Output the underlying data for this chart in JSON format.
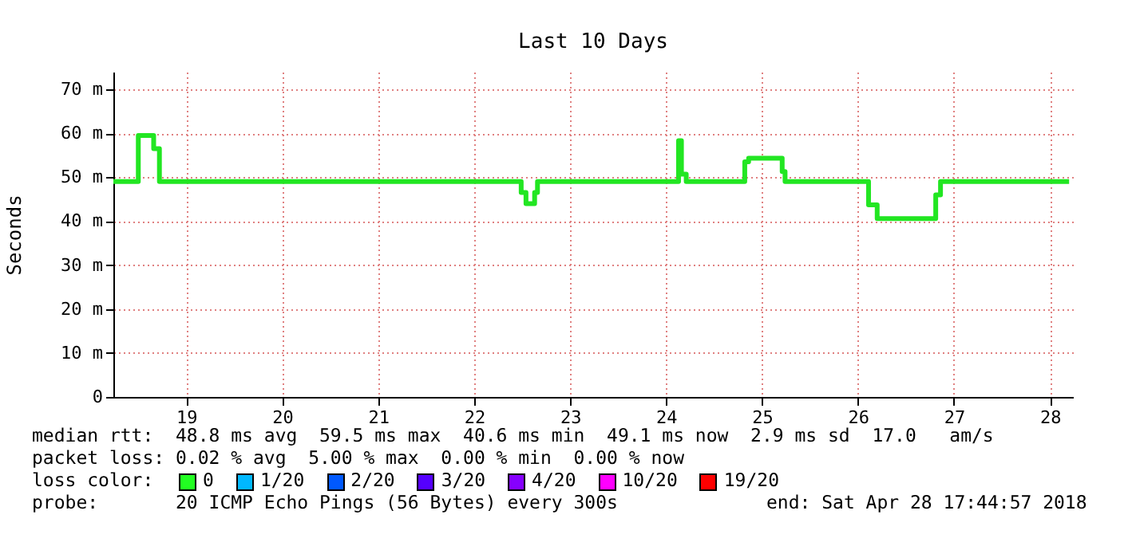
{
  "chart_data": {
    "type": "step",
    "title": "Last 10 Days",
    "ylabel": "Seconds",
    "x": [
      18.24,
      18.5,
      18.66,
      18.72,
      22.49,
      22.54,
      22.63,
      22.66,
      24.13,
      24.16,
      24.21,
      24.82,
      24.86,
      25.21,
      25.24,
      26.11,
      26.2,
      26.81,
      26.86,
      28.2
    ],
    "series": [
      {
        "color": "#22e622",
        "values": [
          49,
          59.5,
          56.5,
          49,
          46.5,
          44,
          46.5,
          49,
          58.3,
          50.7,
          49,
          53.5,
          54.3,
          51.3,
          49,
          43.7,
          40.6,
          46,
          49,
          49
        ]
      }
    ],
    "xlim": [
      18.24,
      28.24
    ],
    "xticks": [
      19,
      20,
      21,
      22,
      23,
      24,
      25,
      26,
      27,
      28
    ],
    "ylim": [
      0,
      74
    ],
    "yticks": [
      0,
      {
        "value": 10,
        "label": "10 m"
      },
      {
        "value": 20,
        "label": "20 m"
      },
      {
        "value": 30,
        "label": "30 m"
      },
      {
        "value": 40,
        "label": "40 m"
      },
      {
        "value": 50,
        "label": "50 m"
      },
      {
        "value": 60,
        "label": "60 m"
      },
      {
        "value": 70,
        "label": "70 m"
      }
    ],
    "grid": true,
    "annotations": [
      "median rtt:  48.8 ms avg  59.5 ms max  40.6 ms min  49.1 ms now  2.9 ms sd  17.0   am/s",
      "packet loss: 0.02 % avg  5.00 % max  0.00 % min  0.00 % now",
      "loss color:",
      "0",
      "1/20",
      "2/20",
      "3/20",
      "4/20",
      "10/20",
      "19/20",
      "probe:       20 ICMP Echo Pings (56 Bytes) every 300s",
      "end: Sat Apr 28 17:44:57 2018"
    ]
  }
}
